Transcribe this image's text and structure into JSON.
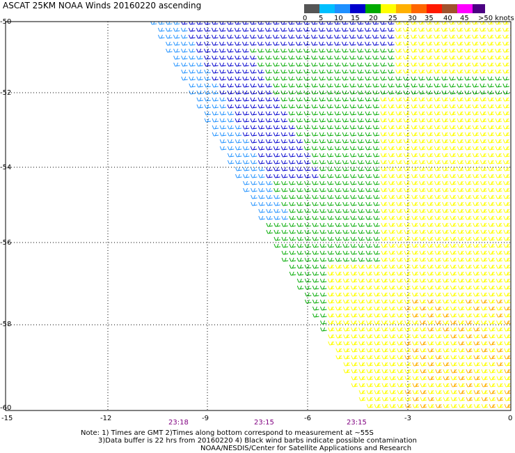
{
  "header": {
    "title": "ASCAT 25KM NOAA Winds 20160220 ascending"
  },
  "legend": {
    "colors": [
      "#555555",
      "#00bfff",
      "#1e90ff",
      "#0000cd",
      "#00aa00",
      "#ffff00",
      "#ffb000",
      "#ff6600",
      "#ff1a00",
      "#a0522d",
      "#ff00ff",
      "#9400d3",
      "#4b0082"
    ],
    "labels": [
      "0",
      "5",
      "10",
      "15",
      "20",
      "25",
      "30",
      "35",
      "40",
      "45",
      ">50 knots"
    ]
  },
  "axes": {
    "y_labels": [
      "-50",
      "-52",
      "-54",
      "-56",
      "-58",
      "-60"
    ],
    "x_labels": [
      "-15",
      "-12",
      "-9",
      "-6",
      "-3",
      "0"
    ],
    "times": [
      "23:18",
      "23:15",
      "23:15"
    ]
  },
  "notes": {
    "line1": "Note: 1) Times are GMT 2)Times along bottom correspond to measurement at ~55S",
    "line2": "3)Data buffer is 22 hrs from 20160220 4) Black wind barbs indicate possible contamination",
    "line3": "NOAA/NESDIS/Center for Satellite Applications and Research"
  },
  "map_data": {
    "lon_range": [
      -15,
      0
    ],
    "lat_range": [
      -60,
      -50
    ],
    "grid": true,
    "swath_left_edge_lon_at_top": -10.7,
    "swath_left_edge_lon_at_bottom": -4.3
  }
}
